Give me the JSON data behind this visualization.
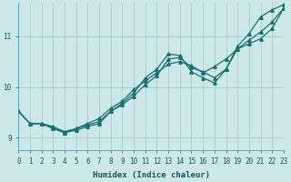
{
  "xlabel": "Humidex (Indice chaleur)",
  "bg_color": "#cce8e8",
  "grid_color": "#aacccc",
  "line_color": "#1a7070",
  "xlim": [
    0,
    23
  ],
  "ylim": [
    8.75,
    11.65
  ],
  "yticks": [
    9,
    10,
    11
  ],
  "xticks": [
    0,
    1,
    2,
    3,
    4,
    5,
    6,
    7,
    8,
    9,
    10,
    11,
    12,
    13,
    14,
    15,
    16,
    17,
    18,
    19,
    20,
    21,
    22,
    23
  ],
  "lines": [
    {
      "x": [
        0,
        1,
        2,
        3,
        4,
        5,
        6,
        7,
        8,
        9,
        10,
        11,
        12,
        13,
        14,
        15,
        16,
        17,
        18,
        19,
        20,
        21,
        22,
        23
      ],
      "y": [
        9.52,
        9.28,
        9.28,
        9.22,
        9.12,
        9.18,
        9.25,
        9.32,
        9.52,
        9.65,
        9.82,
        10.05,
        10.22,
        10.55,
        10.58,
        10.38,
        10.3,
        10.18,
        10.35,
        10.75,
        10.92,
        11.08,
        11.28,
        11.55
      ]
    },
    {
      "x": [
        0,
        1,
        2,
        3,
        4,
        5,
        6,
        7,
        8,
        9,
        10,
        11,
        12,
        13,
        14,
        15,
        16,
        17,
        18,
        19,
        20,
        21,
        22,
        23
      ],
      "y": [
        9.52,
        9.28,
        9.28,
        9.2,
        9.1,
        9.15,
        9.22,
        9.28,
        9.52,
        9.68,
        9.88,
        10.18,
        10.35,
        10.65,
        10.62,
        10.3,
        10.18,
        10.08,
        10.35,
        10.8,
        11.05,
        11.38,
        11.52,
        11.62
      ]
    },
    {
      "x": [
        0,
        1,
        2,
        3,
        4,
        5,
        6,
        7,
        8,
        9,
        10,
        11,
        12,
        13,
        14,
        15,
        16,
        17,
        18,
        19,
        20,
        21,
        22,
        23
      ],
      "y": [
        9.52,
        9.28,
        9.28,
        9.18,
        9.1,
        9.18,
        9.28,
        9.38,
        9.58,
        9.72,
        9.95,
        10.12,
        10.28,
        10.45,
        10.5,
        10.42,
        10.28,
        10.4,
        10.55,
        10.75,
        10.85,
        10.95,
        11.15,
        11.55
      ]
    }
  ],
  "marker": "^",
  "markersize": 2.5,
  "linewidth": 0.9,
  "axis_fontsize": 6.5,
  "tick_fontsize": 5.5
}
